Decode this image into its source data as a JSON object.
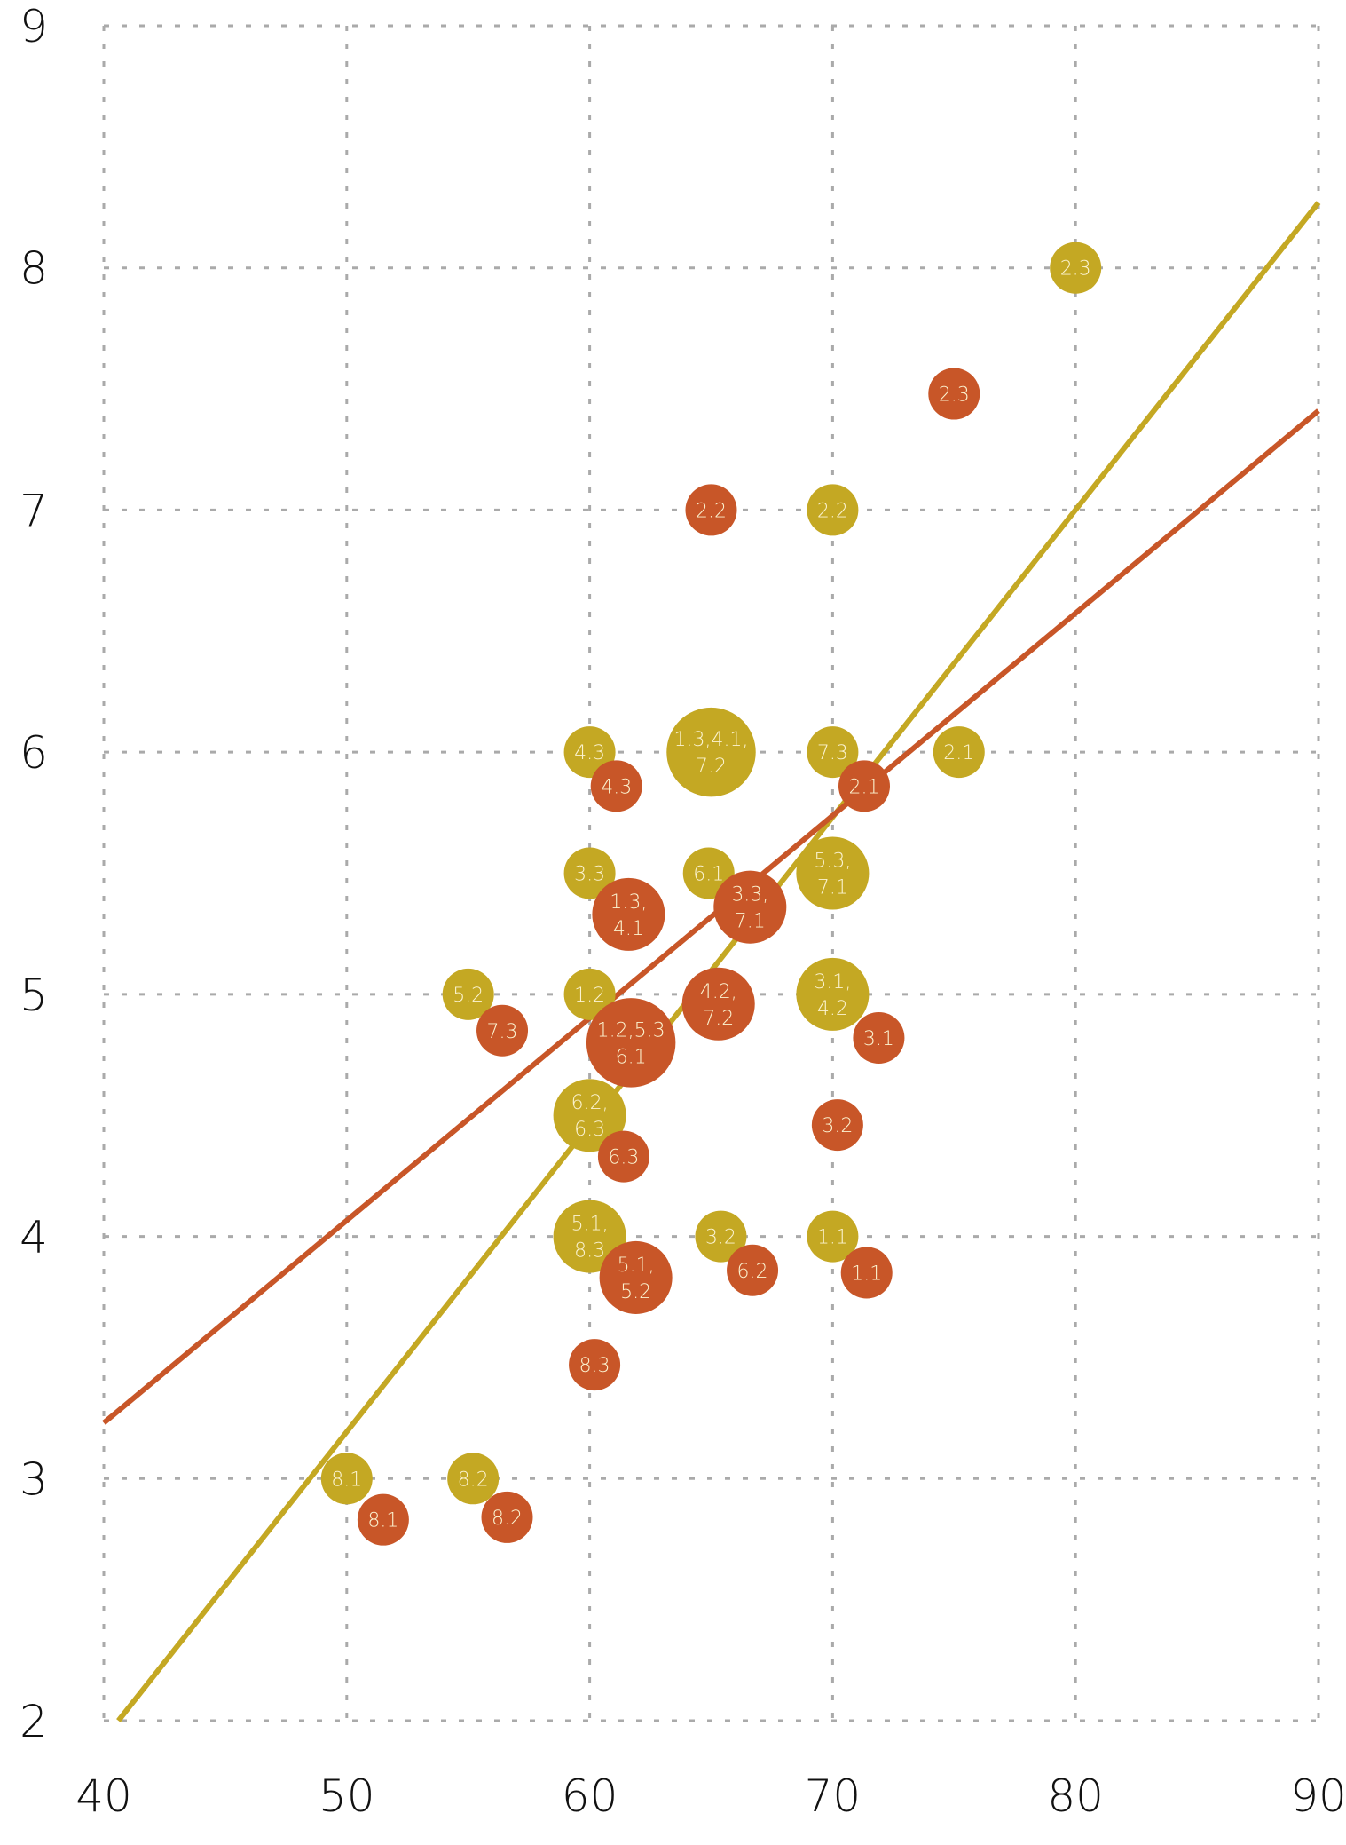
{
  "chart_data": {
    "type": "scatter",
    "title": "",
    "xlabel": "",
    "ylabel": "",
    "xlim": [
      40,
      90
    ],
    "ylim": [
      2,
      9
    ],
    "xticks": [
      "40",
      "50",
      "60",
      "70",
      "80",
      "90"
    ],
    "yticks": [
      "2",
      "3",
      "4",
      "5",
      "6",
      "7",
      "8",
      "9"
    ],
    "grid": true,
    "series": [
      {
        "name": "gold",
        "color": "#C4A823",
        "trendline": {
          "x": [
            40.6,
            90
          ],
          "y": [
            2.0,
            8.27
          ]
        },
        "points": [
          {
            "x": 80,
            "y": 8,
            "n": 1,
            "label": [
              "2.3"
            ]
          },
          {
            "x": 70,
            "y": 7,
            "n": 1,
            "label": [
              "2.2"
            ]
          },
          {
            "x": 60,
            "y": 6,
            "n": 1,
            "label": [
              "4.3"
            ]
          },
          {
            "x": 65,
            "y": 6,
            "n": 3,
            "label": [
              "1.3,4.1,",
              "7.2"
            ]
          },
          {
            "x": 70,
            "y": 6,
            "n": 1,
            "label": [
              "7.3"
            ]
          },
          {
            "x": 75.2,
            "y": 6,
            "n": 1,
            "label": [
              "2.1"
            ]
          },
          {
            "x": 60,
            "y": 5.5,
            "n": 1,
            "label": [
              "3.3"
            ]
          },
          {
            "x": 64.9,
            "y": 5.5,
            "n": 1,
            "label": [
              "6.1"
            ]
          },
          {
            "x": 70,
            "y": 5.5,
            "n": 2,
            "label": [
              "5.3,",
              "7.1"
            ]
          },
          {
            "x": 55,
            "y": 5,
            "n": 1,
            "label": [
              "5.2"
            ]
          },
          {
            "x": 60,
            "y": 5,
            "n": 1,
            "label": [
              "1.2"
            ]
          },
          {
            "x": 70,
            "y": 5,
            "n": 2,
            "label": [
              "3.1,",
              "4.2"
            ]
          },
          {
            "x": 60,
            "y": 4.5,
            "n": 2,
            "label": [
              "6.2,",
              "6.3"
            ]
          },
          {
            "x": 60,
            "y": 4,
            "n": 2,
            "label": [
              "5.1,",
              "8.3"
            ]
          },
          {
            "x": 65.4,
            "y": 4,
            "n": 1,
            "label": [
              "3.2"
            ]
          },
          {
            "x": 70,
            "y": 4,
            "n": 1,
            "label": [
              "1.1"
            ]
          },
          {
            "x": 50,
            "y": 3,
            "n": 1,
            "label": [
              "8.1"
            ]
          },
          {
            "x": 55.2,
            "y": 3,
            "n": 1,
            "label": [
              "8.2"
            ]
          }
        ]
      },
      {
        "name": "orange",
        "color": "#C85628",
        "trendline": {
          "x": [
            40,
            90
          ],
          "y": [
            3.23,
            7.41
          ]
        },
        "points": [
          {
            "x": 75,
            "y": 7.48,
            "n": 1,
            "label": [
              "2.3"
            ]
          },
          {
            "x": 65,
            "y": 7,
            "n": 1,
            "label": [
              "2.2"
            ]
          },
          {
            "x": 61.1,
            "y": 5.86,
            "n": 1,
            "label": [
              "4.3"
            ]
          },
          {
            "x": 71.3,
            "y": 5.86,
            "n": 1,
            "label": [
              "2.1"
            ]
          },
          {
            "x": 61.6,
            "y": 5.33,
            "n": 2,
            "label": [
              "1.3,",
              "4.1"
            ]
          },
          {
            "x": 66.6,
            "y": 5.36,
            "n": 2,
            "label": [
              "3.3,",
              "7.1"
            ]
          },
          {
            "x": 65.3,
            "y": 4.96,
            "n": 2,
            "label": [
              "4.2,",
              "7.2"
            ]
          },
          {
            "x": 56.4,
            "y": 4.85,
            "n": 1,
            "label": [
              "7.3"
            ]
          },
          {
            "x": 61.7,
            "y": 4.8,
            "n": 3,
            "label": [
              "1.2,5.3",
              "6.1"
            ]
          },
          {
            "x": 71.9,
            "y": 4.82,
            "n": 1,
            "label": [
              "3.1"
            ]
          },
          {
            "x": 70.2,
            "y": 4.46,
            "n": 1,
            "label": [
              "3.2"
            ]
          },
          {
            "x": 61.4,
            "y": 4.33,
            "n": 1,
            "label": [
              "6.3"
            ]
          },
          {
            "x": 61.9,
            "y": 3.83,
            "n": 2,
            "label": [
              "5.1,",
              "5.2"
            ]
          },
          {
            "x": 66.7,
            "y": 3.86,
            "n": 1,
            "label": [
              "6.2"
            ]
          },
          {
            "x": 71.4,
            "y": 3.85,
            "n": 1,
            "label": [
              "1.1"
            ]
          },
          {
            "x": 60.2,
            "y": 3.47,
            "n": 1,
            "label": [
              "8.3"
            ]
          },
          {
            "x": 51.5,
            "y": 2.83,
            "n": 1,
            "label": [
              "8.1"
            ]
          },
          {
            "x": 56.6,
            "y": 2.84,
            "n": 1,
            "label": [
              "8.2"
            ]
          }
        ]
      }
    ]
  }
}
